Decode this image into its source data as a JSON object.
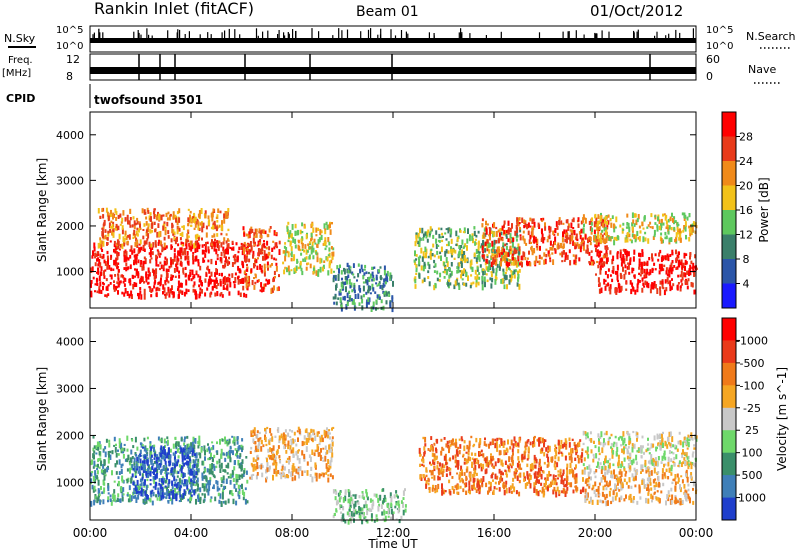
{
  "header": {
    "title": "Rankin Inlet (fitACF)",
    "beam": "Beam 01",
    "date": "01/Oct/2012"
  },
  "panels": {
    "nsky_label": "N.Sky",
    "nsky_ticks": [
      "10^5",
      "10^0"
    ],
    "nsearch_label": "N.Search",
    "nsearch_ticks": [
      "10^5",
      "10^0"
    ],
    "freq_label": "Freq.",
    "freq_unit": "[MHz]",
    "freq_ticks": [
      "12",
      "8"
    ],
    "nave_label": "Nave",
    "nave_ticks": [
      "60",
      "0"
    ],
    "cpid_label": "CPID",
    "cpid_text": "twofsound 3501"
  },
  "chart_data": [
    {
      "type": "heatmap",
      "name": "power",
      "ylabel": "Slant Range [km]",
      "yticks": [
        "1000",
        "2000",
        "3000",
        "4000"
      ],
      "ylim": [
        200,
        4500
      ],
      "xlim": [
        0,
        24
      ],
      "colorbar_label": "Power [dB]",
      "colorbar_ticks": [
        "4",
        "8",
        "12",
        "16",
        "20",
        "24",
        "28"
      ],
      "colors": [
        "#1a1aff",
        "#2b55a8",
        "#3a7f6a",
        "#5ec85e",
        "#f2c21a",
        "#f08a1a",
        "#e83a1a",
        "#ff0000"
      ],
      "regions": [
        {
          "t0": 0.0,
          "t1": 6.2,
          "r0": 500,
          "r1": 1700,
          "level": 7
        },
        {
          "t0": 0.3,
          "t1": 5.5,
          "r0": 1600,
          "r1": 2400,
          "level": 5
        },
        {
          "t0": 6.0,
          "t1": 7.5,
          "r0": 600,
          "r1": 2000,
          "level": 6
        },
        {
          "t0": 7.6,
          "t1": 9.6,
          "r0": 1000,
          "r1": 2100,
          "level": 4
        },
        {
          "t0": 9.6,
          "t1": 12.0,
          "r0": 200,
          "r1": 1200,
          "level": 2
        },
        {
          "t0": 12.8,
          "t1": 17.0,
          "r0": 700,
          "r1": 2000,
          "level": 3
        },
        {
          "t0": 15.5,
          "t1": 20.5,
          "r0": 1200,
          "r1": 2200,
          "level": 6
        },
        {
          "t0": 20.0,
          "t1": 24.0,
          "r0": 600,
          "r1": 1500,
          "level": 7
        },
        {
          "t0": 19.5,
          "t1": 24.0,
          "r0": 1700,
          "r1": 2300,
          "level": 4
        }
      ]
    },
    {
      "type": "heatmap",
      "name": "velocity",
      "ylabel": "Slant Range [km]",
      "yticks": [
        "1000",
        "2000",
        "3000",
        "4000"
      ],
      "ylim": [
        200,
        4500
      ],
      "xlim": [
        0,
        24
      ],
      "colorbar_label": "Velocity [m s^-1]",
      "colorbar_ticks": [
        "1000",
        "500",
        "100",
        "25",
        "-25",
        "-100",
        "-500",
        "-1000"
      ],
      "colors": [
        "#1f3fcc",
        "#3f7fb8",
        "#3a8f6a",
        "#6ed86a",
        "#c8c8c8",
        "#f5a623",
        "#f07a1a",
        "#ea3a1a",
        "#ff0000"
      ],
      "regions": [
        {
          "t0": 0.0,
          "t1": 6.2,
          "r0": 600,
          "r1": 2000,
          "level": 2
        },
        {
          "t0": 1.6,
          "t1": 4.2,
          "r0": 700,
          "r1": 1800,
          "level": 0
        },
        {
          "t0": 6.3,
          "t1": 9.6,
          "r0": 1100,
          "r1": 2200,
          "level": 5
        },
        {
          "t0": 9.6,
          "t1": 12.5,
          "r0": 200,
          "r1": 900,
          "level": 3
        },
        {
          "t0": 13.0,
          "t1": 19.5,
          "r0": 800,
          "r1": 2000,
          "level": 6
        },
        {
          "t0": 19.5,
          "t1": 24.0,
          "r0": 1300,
          "r1": 2100,
          "level": 4
        },
        {
          "t0": 19.5,
          "t1": 24.0,
          "r0": 600,
          "r1": 1300,
          "level": 5
        }
      ]
    }
  ],
  "x_axis": {
    "tick_labels": [
      "00:00",
      "04:00",
      "08:00",
      "12:00",
      "16:00",
      "20:00",
      "00:00"
    ],
    "label": "Time UT"
  }
}
